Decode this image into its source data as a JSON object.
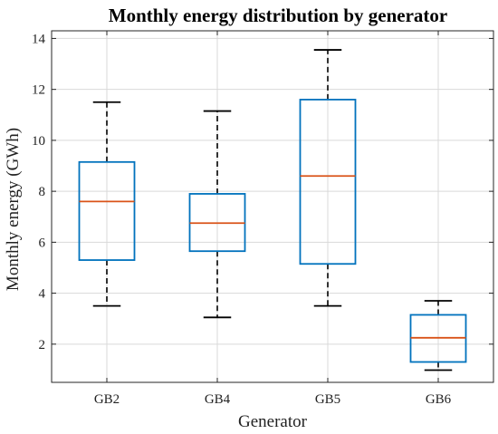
{
  "chart_data": {
    "type": "box",
    "title": "Monthly energy distribution by generator",
    "xlabel": "Generator",
    "ylabel": "Monthly energy (GWh)",
    "ylim": [
      0.5,
      14.3
    ],
    "yticks": [
      2,
      4,
      6,
      8,
      10,
      12,
      14
    ],
    "grid": true,
    "categories": [
      "GB2",
      "GB4",
      "GB5",
      "GB6"
    ],
    "boxes": [
      {
        "category": "GB2",
        "whisker_low": 3.5,
        "q1": 5.3,
        "median": 7.6,
        "q3": 9.15,
        "whisker_high": 11.5
      },
      {
        "category": "GB4",
        "whisker_low": 3.05,
        "q1": 5.65,
        "median": 6.75,
        "q3": 7.9,
        "whisker_high": 11.15
      },
      {
        "category": "GB5",
        "whisker_low": 3.5,
        "q1": 5.15,
        "median": 8.6,
        "q3": 11.6,
        "whisker_high": 13.55
      },
      {
        "category": "GB6",
        "whisker_low": 0.98,
        "q1": 1.3,
        "median": 2.25,
        "q3": 3.15,
        "whisker_high": 3.7
      }
    ],
    "colors": {
      "box": "#0072BD",
      "median": "#D95319",
      "whisker": "#000000",
      "grid": "#d9d9d9",
      "axis": "#262626"
    }
  }
}
